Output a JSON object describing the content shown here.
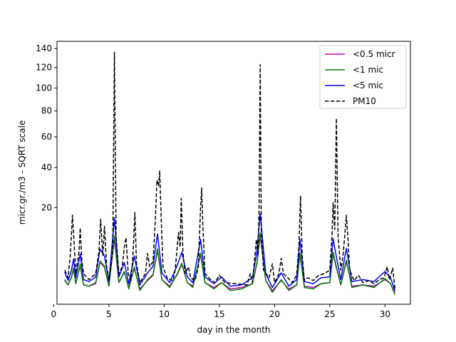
{
  "chart_data": {
    "type": "line",
    "title": "",
    "xlabel": "day in the month",
    "ylabel": "micr.gr./m3 - SQRT scale",
    "xlim": [
      0.3,
      32.3
    ],
    "ylim": [
      0,
      148
    ],
    "y_scale": "sqrt",
    "grid": false,
    "legend_position": "top-right",
    "x_ticks": [
      0,
      5,
      10,
      15,
      20,
      25,
      30
    ],
    "x_tick_labels": [
      "0",
      "5",
      "10",
      "15",
      "20",
      "25",
      "30"
    ],
    "y_ticks": [
      20,
      40,
      60,
      80,
      100,
      120,
      140
    ],
    "y_tick_labels": [
      "20",
      "40",
      "60",
      "80",
      "100",
      "120",
      "140"
    ],
    "series": [
      {
        "name": "<0.5 micr",
        "color": "#bf00bf",
        "style": "solid",
        "points": [
          [
            1.0,
            1.2
          ],
          [
            1.3,
            0.8
          ],
          [
            1.6,
            1.5
          ],
          [
            1.8,
            2.6
          ],
          [
            2.0,
            0.9
          ],
          [
            2.4,
            3.2
          ],
          [
            2.7,
            0.8
          ],
          [
            3.2,
            0.7
          ],
          [
            3.8,
            0.9
          ],
          [
            4.2,
            3.8
          ],
          [
            4.6,
            2.9
          ],
          [
            5.0,
            0.7
          ],
          [
            5.5,
            9.2
          ],
          [
            5.9,
            1.0
          ],
          [
            6.4,
            2.2
          ],
          [
            6.8,
            0.6
          ],
          [
            7.3,
            2.8
          ],
          [
            7.8,
            0.5
          ],
          [
            8.5,
            1.2
          ],
          [
            9.0,
            1.8
          ],
          [
            9.4,
            6.2
          ],
          [
            9.8,
            1.3
          ],
          [
            10.5,
            0.7
          ],
          [
            11.2,
            1.9
          ],
          [
            11.6,
            3.4
          ],
          [
            12.1,
            1.0
          ],
          [
            12.6,
            0.7
          ],
          [
            13.3,
            5.2
          ],
          [
            13.7,
            1.0
          ],
          [
            14.5,
            0.6
          ],
          [
            15.2,
            1.0
          ],
          [
            16.0,
            0.5
          ],
          [
            17.0,
            0.6
          ],
          [
            18.0,
            0.9
          ],
          [
            18.4,
            3.5
          ],
          [
            18.7,
            10.0
          ],
          [
            19.2,
            1.2
          ],
          [
            19.8,
            0.4
          ],
          [
            20.6,
            1.2
          ],
          [
            21.3,
            0.5
          ],
          [
            22.0,
            0.8
          ],
          [
            22.3,
            5.3
          ],
          [
            22.7,
            0.7
          ],
          [
            23.5,
            0.6
          ],
          [
            24.2,
            0.9
          ],
          [
            25.0,
            1.0
          ],
          [
            25.3,
            5.4
          ],
          [
            25.6,
            2.8
          ],
          [
            26.0,
            0.8
          ],
          [
            26.5,
            3.9
          ],
          [
            27.0,
            0.7
          ],
          [
            28.0,
            0.8
          ],
          [
            29.0,
            0.7
          ],
          [
            30.0,
            1.3
          ],
          [
            30.5,
            0.9
          ],
          [
            30.9,
            0.3
          ]
        ]
      },
      {
        "name": "<1 mic",
        "color": "#008000",
        "style": "solid",
        "points": [
          [
            1.0,
            1.3
          ],
          [
            1.3,
            0.8
          ],
          [
            1.6,
            1.6
          ],
          [
            1.8,
            2.8
          ],
          [
            2.0,
            0.9
          ],
          [
            2.4,
            3.4
          ],
          [
            2.7,
            0.8
          ],
          [
            3.2,
            0.7
          ],
          [
            3.8,
            1.0
          ],
          [
            4.2,
            4.0
          ],
          [
            4.6,
            3.1
          ],
          [
            5.0,
            0.7
          ],
          [
            5.5,
            10.0
          ],
          [
            5.9,
            1.0
          ],
          [
            6.4,
            2.3
          ],
          [
            6.8,
            0.5
          ],
          [
            7.3,
            3.0
          ],
          [
            7.8,
            0.4
          ],
          [
            8.5,
            1.3
          ],
          [
            9.0,
            1.9
          ],
          [
            9.4,
            6.6
          ],
          [
            9.8,
            1.3
          ],
          [
            10.5,
            0.6
          ],
          [
            11.2,
            2.0
          ],
          [
            11.6,
            3.6
          ],
          [
            12.1,
            1.0
          ],
          [
            12.6,
            0.6
          ],
          [
            13.3,
            5.6
          ],
          [
            13.7,
            1.0
          ],
          [
            14.5,
            0.5
          ],
          [
            15.2,
            1.0
          ],
          [
            16.0,
            0.4
          ],
          [
            17.0,
            0.5
          ],
          [
            18.0,
            0.9
          ],
          [
            18.4,
            3.7
          ],
          [
            18.7,
            11.0
          ],
          [
            19.2,
            1.2
          ],
          [
            19.8,
            0.3
          ],
          [
            20.6,
            1.3
          ],
          [
            21.3,
            0.4
          ],
          [
            22.0,
            0.8
          ],
          [
            22.3,
            5.6
          ],
          [
            22.7,
            0.6
          ],
          [
            23.5,
            0.5
          ],
          [
            24.2,
            0.9
          ],
          [
            25.0,
            1.0
          ],
          [
            25.3,
            5.8
          ],
          [
            25.6,
            3.0
          ],
          [
            26.0,
            0.8
          ],
          [
            26.5,
            4.2
          ],
          [
            27.0,
            0.6
          ],
          [
            28.0,
            0.8
          ],
          [
            29.0,
            0.6
          ],
          [
            30.0,
            1.4
          ],
          [
            30.5,
            0.9
          ],
          [
            30.9,
            0.2
          ]
        ]
      },
      {
        "name": "<5 mic",
        "color": "#0000ff",
        "style": "solid",
        "points": [
          [
            1.0,
            2.2
          ],
          [
            1.3,
            1.2
          ],
          [
            1.6,
            2.4
          ],
          [
            1.8,
            4.4
          ],
          [
            2.0,
            1.5
          ],
          [
            2.4,
            5.4
          ],
          [
            2.7,
            1.3
          ],
          [
            3.2,
            1.1
          ],
          [
            3.8,
            1.6
          ],
          [
            4.2,
            6.5
          ],
          [
            4.6,
            5.0
          ],
          [
            5.0,
            1.1
          ],
          [
            5.5,
            16.0
          ],
          [
            5.9,
            1.6
          ],
          [
            6.4,
            3.7
          ],
          [
            6.8,
            0.9
          ],
          [
            7.3,
            5.0
          ],
          [
            7.8,
            0.8
          ],
          [
            8.5,
            2.1
          ],
          [
            9.0,
            3.1
          ],
          [
            9.4,
            10.6
          ],
          [
            9.8,
            2.1
          ],
          [
            10.5,
            1.0
          ],
          [
            11.2,
            3.3
          ],
          [
            11.6,
            5.8
          ],
          [
            12.1,
            1.6
          ],
          [
            12.6,
            1.0
          ],
          [
            13.3,
            9.0
          ],
          [
            13.7,
            1.6
          ],
          [
            14.5,
            0.9
          ],
          [
            15.2,
            1.6
          ],
          [
            16.0,
            0.7
          ],
          [
            17.0,
            0.8
          ],
          [
            18.0,
            1.5
          ],
          [
            18.4,
            6.0
          ],
          [
            18.7,
            17.5
          ],
          [
            19.2,
            2.0
          ],
          [
            19.8,
            0.6
          ],
          [
            20.6,
            2.1
          ],
          [
            21.3,
            0.7
          ],
          [
            22.0,
            1.3
          ],
          [
            22.3,
            9.0
          ],
          [
            22.7,
            1.1
          ],
          [
            23.5,
            0.9
          ],
          [
            24.2,
            1.5
          ],
          [
            25.0,
            1.6
          ],
          [
            25.3,
            9.2
          ],
          [
            25.6,
            4.8
          ],
          [
            26.0,
            1.3
          ],
          [
            26.5,
            6.7
          ],
          [
            27.0,
            1.1
          ],
          [
            28.0,
            1.3
          ],
          [
            29.0,
            1.1
          ],
          [
            30.0,
            2.3
          ],
          [
            30.5,
            1.5
          ],
          [
            30.9,
            0.4
          ]
        ]
      },
      {
        "name": "PM10",
        "color": "#000000",
        "style": "dashed",
        "points": [
          [
            1.0,
            2.5
          ],
          [
            1.3,
            1.5
          ],
          [
            1.5,
            5.0
          ],
          [
            1.7,
            17.0
          ],
          [
            1.85,
            8.0
          ],
          [
            2.0,
            2.0
          ],
          [
            2.3,
            6.0
          ],
          [
            2.4,
            12.5
          ],
          [
            2.55,
            4.0
          ],
          [
            2.7,
            2.0
          ],
          [
            3.2,
            1.3
          ],
          [
            3.8,
            2.0
          ],
          [
            4.1,
            6.0
          ],
          [
            4.25,
            15.5
          ],
          [
            4.45,
            5.0
          ],
          [
            4.6,
            13.0
          ],
          [
            4.8,
            3.0
          ],
          [
            5.0,
            1.3
          ],
          [
            5.35,
            6.0
          ],
          [
            5.5,
            136.0
          ],
          [
            5.65,
            10.0
          ],
          [
            5.9,
            2.0
          ],
          [
            6.2,
            3.0
          ],
          [
            6.4,
            7.0
          ],
          [
            6.55,
            9.5
          ],
          [
            6.75,
            2.0
          ],
          [
            7.0,
            1.2
          ],
          [
            7.2,
            6.0
          ],
          [
            7.35,
            18.0
          ],
          [
            7.5,
            3.5
          ],
          [
            7.8,
            1.0
          ],
          [
            8.3,
            2.0
          ],
          [
            8.5,
            5.5
          ],
          [
            8.7,
            3.0
          ],
          [
            9.0,
            4.0
          ],
          [
            9.2,
            15.0
          ],
          [
            9.35,
            33.0
          ],
          [
            9.5,
            30.0
          ],
          [
            9.6,
            38.0
          ],
          [
            9.75,
            14.0
          ],
          [
            9.9,
            3.0
          ],
          [
            10.3,
            1.4
          ],
          [
            10.8,
            1.2
          ],
          [
            11.0,
            2.5
          ],
          [
            11.3,
            11.0
          ],
          [
            11.45,
            7.0
          ],
          [
            11.55,
            24.0
          ],
          [
            11.7,
            6.0
          ],
          [
            11.9,
            2.0
          ],
          [
            12.2,
            3.0
          ],
          [
            12.4,
            1.5
          ],
          [
            12.8,
            1.2
          ],
          [
            13.1,
            3.0
          ],
          [
            13.3,
            20.0
          ],
          [
            13.4,
            29.0
          ],
          [
            13.5,
            14.0
          ],
          [
            13.7,
            2.0
          ],
          [
            14.2,
            1.3
          ],
          [
            14.6,
            1.0
          ],
          [
            15.0,
            1.8
          ],
          [
            15.5,
            1.0
          ],
          [
            16.5,
            0.9
          ],
          [
            17.5,
            0.8
          ],
          [
            17.8,
            2.0
          ],
          [
            18.0,
            1.0
          ],
          [
            18.2,
            4.5
          ],
          [
            18.35,
            9.0
          ],
          [
            18.5,
            5.0
          ],
          [
            18.6,
            20.0
          ],
          [
            18.7,
            123.0
          ],
          [
            18.8,
            12.0
          ],
          [
            19.0,
            2.5
          ],
          [
            19.5,
            1.5
          ],
          [
            19.8,
            3.5
          ],
          [
            20.0,
            1.0
          ],
          [
            20.4,
            2.0
          ],
          [
            20.6,
            4.5
          ],
          [
            20.8,
            2.0
          ],
          [
            21.2,
            1.5
          ],
          [
            21.6,
            1.0
          ],
          [
            22.0,
            1.8
          ],
          [
            22.2,
            7.0
          ],
          [
            22.35,
            25.0
          ],
          [
            22.5,
            5.0
          ],
          [
            22.7,
            1.2
          ],
          [
            23.0,
            1.5
          ],
          [
            23.5,
            1.2
          ],
          [
            24.0,
            1.8
          ],
          [
            24.5,
            2.0
          ],
          [
            25.0,
            2.5
          ],
          [
            25.2,
            10.0
          ],
          [
            25.3,
            22.0
          ],
          [
            25.45,
            12.0
          ],
          [
            25.6,
            74.0
          ],
          [
            25.75,
            10.0
          ],
          [
            26.0,
            2.5
          ],
          [
            26.2,
            5.0
          ],
          [
            26.4,
            12.0
          ],
          [
            26.5,
            17.0
          ],
          [
            26.65,
            9.0
          ],
          [
            26.8,
            2.5
          ],
          [
            27.2,
            1.2
          ],
          [
            27.6,
            1.8
          ],
          [
            28.0,
            1.0
          ],
          [
            28.5,
            1.2
          ],
          [
            29.0,
            0.9
          ],
          [
            29.5,
            1.3
          ],
          [
            29.9,
            1.5
          ],
          [
            30.2,
            3.0
          ],
          [
            30.4,
            1.3
          ],
          [
            30.7,
            2.8
          ],
          [
            30.9,
            0.5
          ]
        ]
      }
    ]
  }
}
